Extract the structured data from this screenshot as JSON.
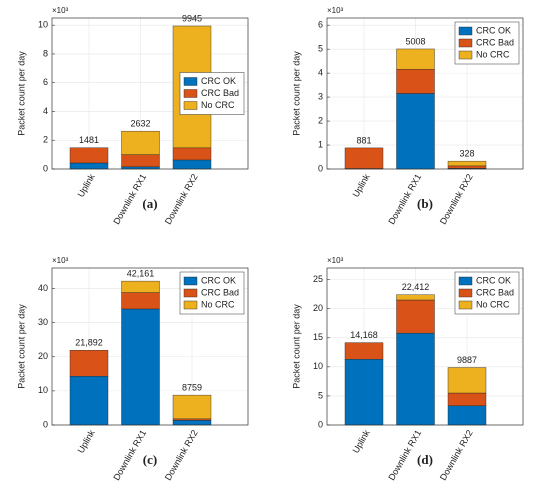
{
  "chart_data": [
    {
      "type": "bar",
      "stacked": true,
      "caption": "(a)",
      "ylabel": "Packet count per day",
      "y_exponent": "×10³",
      "categories": [
        "Uplink",
        "Downlink RX1",
        "Downlink RX2"
      ],
      "series": [
        {
          "name": "CRC OK",
          "color": "#0072bd",
          "values": [
            420,
            150,
            630
          ]
        },
        {
          "name": "CRC Bad",
          "color": "#d95319",
          "values": [
            1061,
            850,
            840
          ]
        },
        {
          "name": "No CRC",
          "color": "#edb120",
          "values": [
            0,
            1632,
            8475
          ]
        }
      ],
      "totals": [
        1481,
        2632,
        9945
      ],
      "ylim": [
        0,
        10500
      ],
      "yticks": [
        0,
        {
          "value": 2000,
          "label": "2"
        },
        {
          "value": 4000,
          "label": "4"
        },
        {
          "value": 6000,
          "label": "6"
        },
        {
          "value": 8000,
          "label": "8"
        },
        {
          "value": 10000,
          "label": "10"
        }
      ],
      "grid": true,
      "legend": "east"
    },
    {
      "type": "bar",
      "stacked": true,
      "caption": "(b)",
      "ylabel": "Packet count per day",
      "y_exponent": "×10³",
      "categories": [
        "Uplink",
        "Downlink RX1",
        "Downlink RX2"
      ],
      "series": [
        {
          "name": "CRC OK",
          "color": "#0072bd",
          "values": [
            20,
            3150,
            30
          ]
        },
        {
          "name": "CRC Bad",
          "color": "#d95319",
          "values": [
            861,
            1010,
            100
          ]
        },
        {
          "name": "No CRC",
          "color": "#edb120",
          "values": [
            0,
            848,
            198
          ]
        }
      ],
      "totals": [
        881,
        5008,
        328
      ],
      "ylim": [
        0,
        6300
      ],
      "yticks": [
        0,
        {
          "value": 1000,
          "label": "1"
        },
        {
          "value": 2000,
          "label": "2"
        },
        {
          "value": 3000,
          "label": "3"
        },
        {
          "value": 4000,
          "label": "4"
        },
        {
          "value": 5000,
          "label": "5"
        },
        {
          "value": 6000,
          "label": "6"
        }
      ],
      "grid": true,
      "legend": "northeast"
    },
    {
      "type": "bar",
      "stacked": true,
      "caption": "(c)",
      "ylabel": "Packet count per day",
      "y_exponent": "×10³",
      "categories": [
        "Uplink",
        "Downlink RX1",
        "Downlink RX2"
      ],
      "series": [
        {
          "name": "CRC OK",
          "color": "#0072bd",
          "values": [
            14300,
            34000,
            1400
          ]
        },
        {
          "name": "CRC Bad",
          "color": "#d95319",
          "values": [
            7592,
            4800,
            400
          ]
        },
        {
          "name": "No CRC",
          "color": "#edb120",
          "values": [
            0,
            3361,
            6959
          ]
        }
      ],
      "totals": [
        21892,
        42161,
        8759
      ],
      "total_labels": [
        "21,892",
        "42,161",
        "8759"
      ],
      "ylim": [
        0,
        46000
      ],
      "yticks": [
        0,
        {
          "value": 10000,
          "label": "10"
        },
        {
          "value": 20000,
          "label": "20"
        },
        {
          "value": 30000,
          "label": "30"
        },
        {
          "value": 40000,
          "label": "40"
        }
      ],
      "grid": true,
      "legend": "northeast"
    },
    {
      "type": "bar",
      "stacked": true,
      "caption": "(d)",
      "ylabel": "Packet count per day",
      "y_exponent": "×10³",
      "categories": [
        "Uplink",
        "Downlink RX1",
        "Downlink RX2"
      ],
      "series": [
        {
          "name": "CRC OK",
          "color": "#0072bd",
          "values": [
            11300,
            15800,
            3300
          ]
        },
        {
          "name": "CRC Bad",
          "color": "#d95319",
          "values": [
            2868,
            5700,
            2200
          ]
        },
        {
          "name": "No CRC",
          "color": "#edb120",
          "values": [
            0,
            912,
            4387
          ]
        }
      ],
      "totals": [
        14168,
        22412,
        9887
      ],
      "total_labels": [
        "14,168",
        "22,412",
        "9887"
      ],
      "ylim": [
        0,
        27000
      ],
      "yticks": [
        0,
        {
          "value": 5000,
          "label": "5"
        },
        {
          "value": 10000,
          "label": "10"
        },
        {
          "value": 15000,
          "label": "15"
        },
        {
          "value": 20000,
          "label": "20"
        },
        {
          "value": 25000,
          "label": "25"
        }
      ],
      "grid": true,
      "legend": "northeast"
    }
  ]
}
